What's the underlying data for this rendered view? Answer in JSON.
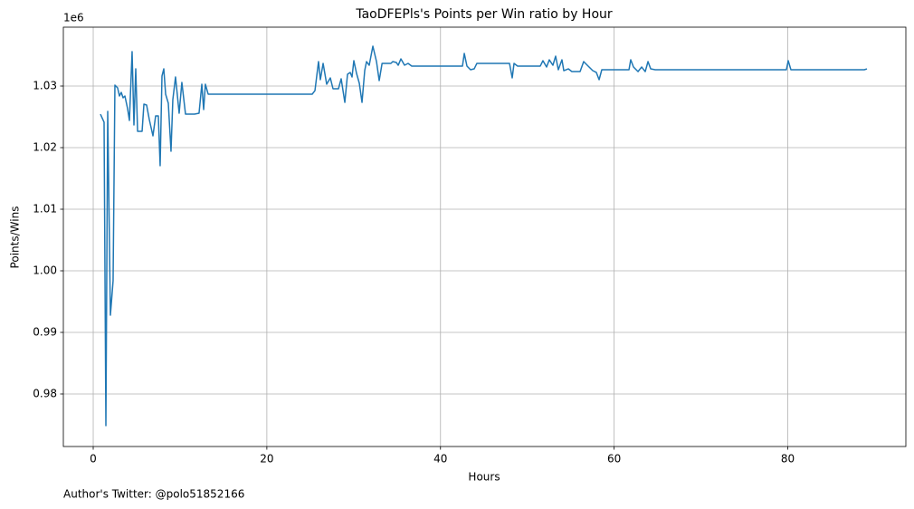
{
  "chart_data": {
    "type": "line",
    "title": "TaoDFEPls's Points per Win ratio by Hour",
    "xlabel": "Hours",
    "ylabel": "Points/Wins",
    "y_offset_label": "1e6",
    "footer": "Author's Twitter: @polo51852166",
    "grid": true,
    "xlim": [
      -3.44,
      93.6
    ],
    "ylim": [
      0.97147,
      1.03956
    ],
    "xticks": [
      0,
      20,
      40,
      60,
      80
    ],
    "yticks": [
      0.98,
      0.99,
      {
        "value": 1,
        "label": "1.00"
      },
      1.01,
      1.02,
      1.03
    ],
    "series": [
      {
        "name": "Points/Wins",
        "color": "#1f77b4",
        "x": [
          0.83,
          1.25,
          1.46,
          1.67,
          1.98,
          2.29,
          2.5,
          2.81,
          3.02,
          3.23,
          3.44,
          3.65,
          3.96,
          4.17,
          4.48,
          4.69,
          4.9,
          5.11,
          5.63,
          5.84,
          6.15,
          6.46,
          6.88,
          7.19,
          7.5,
          7.71,
          7.92,
          8.13,
          8.34,
          8.65,
          8.96,
          9.17,
          9.48,
          9.9,
          10.21,
          10.63,
          11.67,
          12.19,
          12.51,
          12.72,
          12.92,
          13.24,
          25.22,
          25.54,
          25.95,
          26.16,
          26.48,
          26.89,
          27.31,
          27.62,
          28.25,
          28.56,
          28.98,
          29.29,
          29.6,
          29.81,
          30.02,
          30.33,
          30.65,
          30.96,
          31.27,
          31.48,
          31.79,
          32.21,
          32.63,
          32.94,
          33.27,
          34.29,
          34.5,
          34.92,
          35.13,
          35.44,
          35.86,
          36.27,
          36.69,
          42.53,
          42.74,
          43.05,
          43.46,
          43.88,
          44.19,
          47.95,
          48.26,
          48.47,
          48.88,
          51.49,
          51.8,
          52.22,
          52.53,
          52.95,
          53.26,
          53.57,
          53.99,
          54.2,
          54.72,
          55.13,
          56.08,
          56.49,
          57.01,
          57.54,
          57.95,
          58.27,
          58.58,
          61.71,
          61.91,
          62.23,
          62.75,
          63.17,
          63.58,
          63.9,
          64.21,
          64.73,
          79.84,
          80.05,
          80.36,
          88.81,
          89.12
        ],
        "values": [
          1.02544,
          1.02412,
          0.97485,
          1.02588,
          0.99279,
          0.99838,
          1.03015,
          1.02971,
          1.02838,
          1.02897,
          1.02809,
          1.02838,
          1.02632,
          1.02441,
          1.03559,
          1.02368,
          1.03279,
          1.02265,
          1.02265,
          1.02706,
          1.02691,
          1.02456,
          1.02191,
          1.02515,
          1.02515,
          1.01706,
          1.03162,
          1.03279,
          1.02868,
          1.02721,
          1.01941,
          1.02779,
          1.03147,
          1.02559,
          1.03059,
          1.02544,
          1.02544,
          1.02559,
          1.03029,
          1.02618,
          1.03029,
          1.02868,
          1.02868,
          1.02926,
          1.03397,
          1.03103,
          1.03368,
          1.03029,
          1.03132,
          1.02956,
          1.02956,
          1.03118,
          1.02735,
          1.03191,
          1.03221,
          1.03147,
          1.03412,
          1.03206,
          1.03044,
          1.02735,
          1.0325,
          1.03397,
          1.03338,
          1.03647,
          1.03397,
          1.03088,
          1.03368,
          1.03368,
          1.03397,
          1.03382,
          1.03338,
          1.03441,
          1.03338,
          1.03368,
          1.03324,
          1.03324,
          1.03529,
          1.03324,
          1.03265,
          1.03279,
          1.03368,
          1.03368,
          1.03132,
          1.03368,
          1.03324,
          1.03324,
          1.03412,
          1.03309,
          1.03426,
          1.03338,
          1.03485,
          1.03265,
          1.03426,
          1.0325,
          1.03279,
          1.03235,
          1.03235,
          1.03397,
          1.03324,
          1.0325,
          1.03221,
          1.03103,
          1.03265,
          1.03265,
          1.03426,
          1.03309,
          1.03235,
          1.03309,
          1.03235,
          1.03397,
          1.03279,
          1.03265,
          1.03265,
          1.03412,
          1.03265,
          1.03265,
          1.03279
        ]
      }
    ]
  }
}
